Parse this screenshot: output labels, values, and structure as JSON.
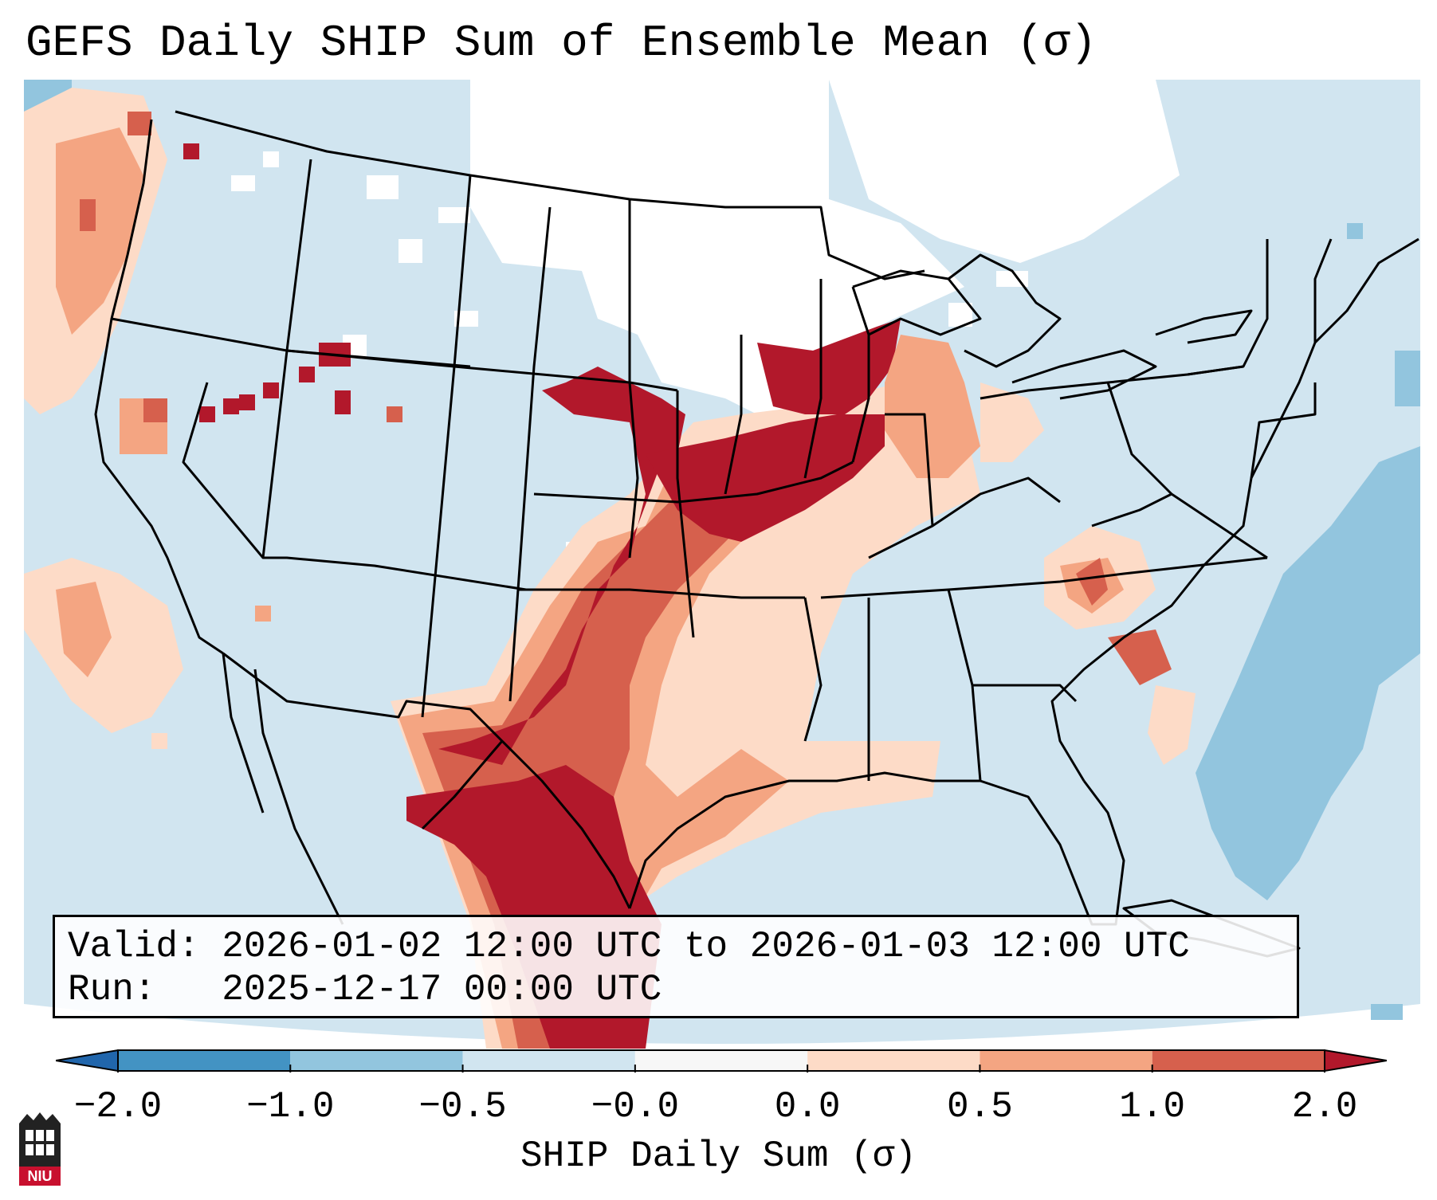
{
  "title": "GEFS Daily SHIP Sum of Ensemble Mean (σ)",
  "legend": {
    "valid_prefix": "Valid:",
    "valid_value": "2026-01-02 12:00 UTC to 2026-01-03 12:00 UTC",
    "run_prefix": "Run:",
    "run_value": "2025-12-17 00:00 UTC"
  },
  "colorbar": {
    "label": "SHIP Daily Sum (σ)",
    "ticks": [
      "−2.0",
      "−1.0",
      "−0.5",
      "−0.0",
      "0.0",
      "0.5",
      "1.0",
      "2.0"
    ],
    "bins": [
      {
        "color": "#4393c3"
      },
      {
        "color": "#92c5de"
      },
      {
        "color": "#d1e5f0"
      },
      {
        "color": "#f7f7f7"
      },
      {
        "color": "#fddbc7"
      },
      {
        "color": "#f4a582"
      },
      {
        "color": "#d6604d"
      }
    ],
    "under_color": "#2166ac",
    "over_color": "#b2182b"
  },
  "map": {
    "background_color": "#d1e5f0",
    "neutral_color": "#ffffff",
    "strong_negative_color": "#92c5de",
    "weak_positive_color": "#fddbc7",
    "moderate_positive_color": "#f4a582",
    "high_positive_color": "#d6604d",
    "extreme_positive_color": "#b2182b",
    "state_line_color": "#000000"
  },
  "logo": {
    "text": "NIU",
    "color": "#c8102e"
  }
}
